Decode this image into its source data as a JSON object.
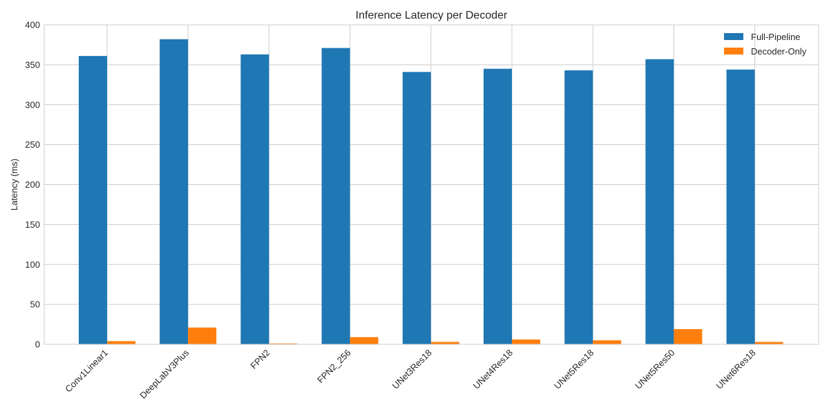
{
  "chart_data": {
    "type": "bar",
    "title": "Inference Latency per Decoder",
    "xlabel": "",
    "ylabel": "Latency (ms)",
    "ylim": [
      0,
      400
    ],
    "yticks": [
      0,
      50,
      100,
      150,
      200,
      250,
      300,
      350,
      400
    ],
    "grid": true,
    "legend_position": "top-right",
    "categories": [
      "Conv1Linear1",
      "DeepLabV3Plus",
      "FPN2",
      "FPN2_256",
      "UNet3Res18",
      "UNet4Res18",
      "UNet5Res18",
      "UNet5Res50",
      "UNet6Res18"
    ],
    "series": [
      {
        "name": "Full-Pipeline",
        "color": "#1f77b4",
        "values": [
          361,
          382,
          363,
          371,
          341,
          345,
          343,
          357,
          344
        ]
      },
      {
        "name": "Decoder-Only",
        "color": "#ff7f0e",
        "values": [
          4,
          21,
          1,
          9,
          3,
          6,
          5,
          19,
          3
        ]
      }
    ]
  }
}
